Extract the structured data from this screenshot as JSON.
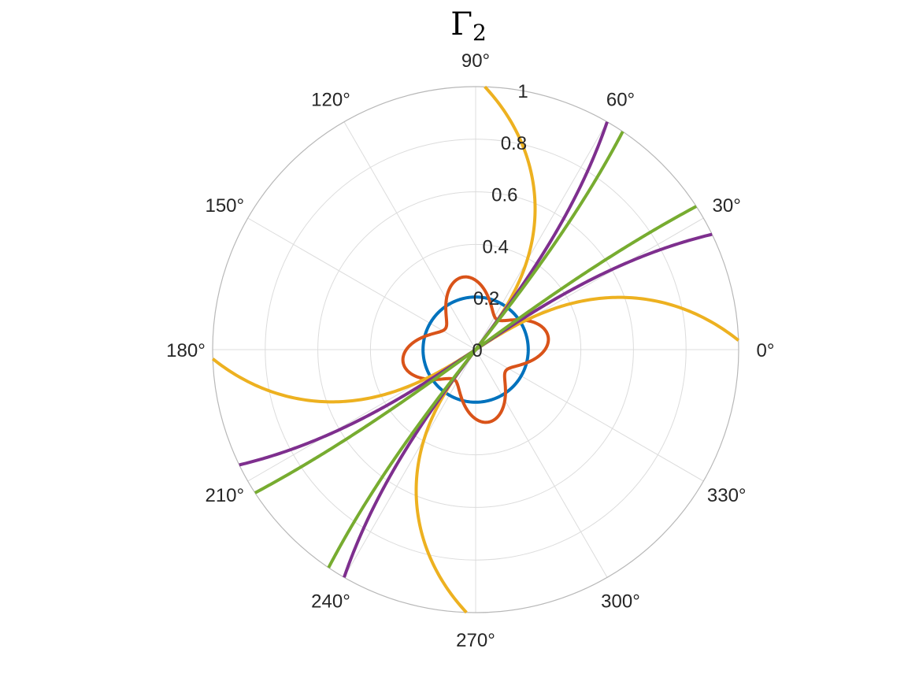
{
  "chart_data": {
    "type": "polar",
    "title": "Γ",
    "title_subscript": "2",
    "rlim": [
      0,
      1
    ],
    "r_ticks": [
      "0",
      "0.2",
      "0.4",
      "0.6",
      "0.8",
      "1"
    ],
    "theta_ticks": [
      "0°",
      "30°",
      "60°",
      "90°",
      "120°",
      "150°",
      "180°",
      "210°",
      "240°",
      "270°",
      "300°",
      "330°"
    ],
    "grid": true,
    "series": [
      {
        "color": "#0072bd",
        "kind": "circle",
        "r": 0.2
      },
      {
        "color": "#d95319",
        "kind": "four-lobe rose",
        "lobe_directions_deg": [
          10,
          100,
          190,
          280
        ],
        "r_max": 0.28,
        "r_min": 0.14
      },
      {
        "color": "#edb120",
        "kind": "fan",
        "branch_directions_deg": [
          2,
          88
        ],
        "opening_near_origin_deg": [
          33,
          52
        ]
      },
      {
        "color": "#7e2f8e",
        "kind": "fan",
        "branch_directions_deg": [
          26,
          60
        ],
        "opening_near_origin_deg": [
          34,
          53
        ]
      },
      {
        "color": "#77ac30",
        "kind": "fan",
        "branch_directions_deg": [
          33,
          56
        ],
        "opening_near_origin_deg": [
          36,
          52
        ]
      }
    ]
  }
}
